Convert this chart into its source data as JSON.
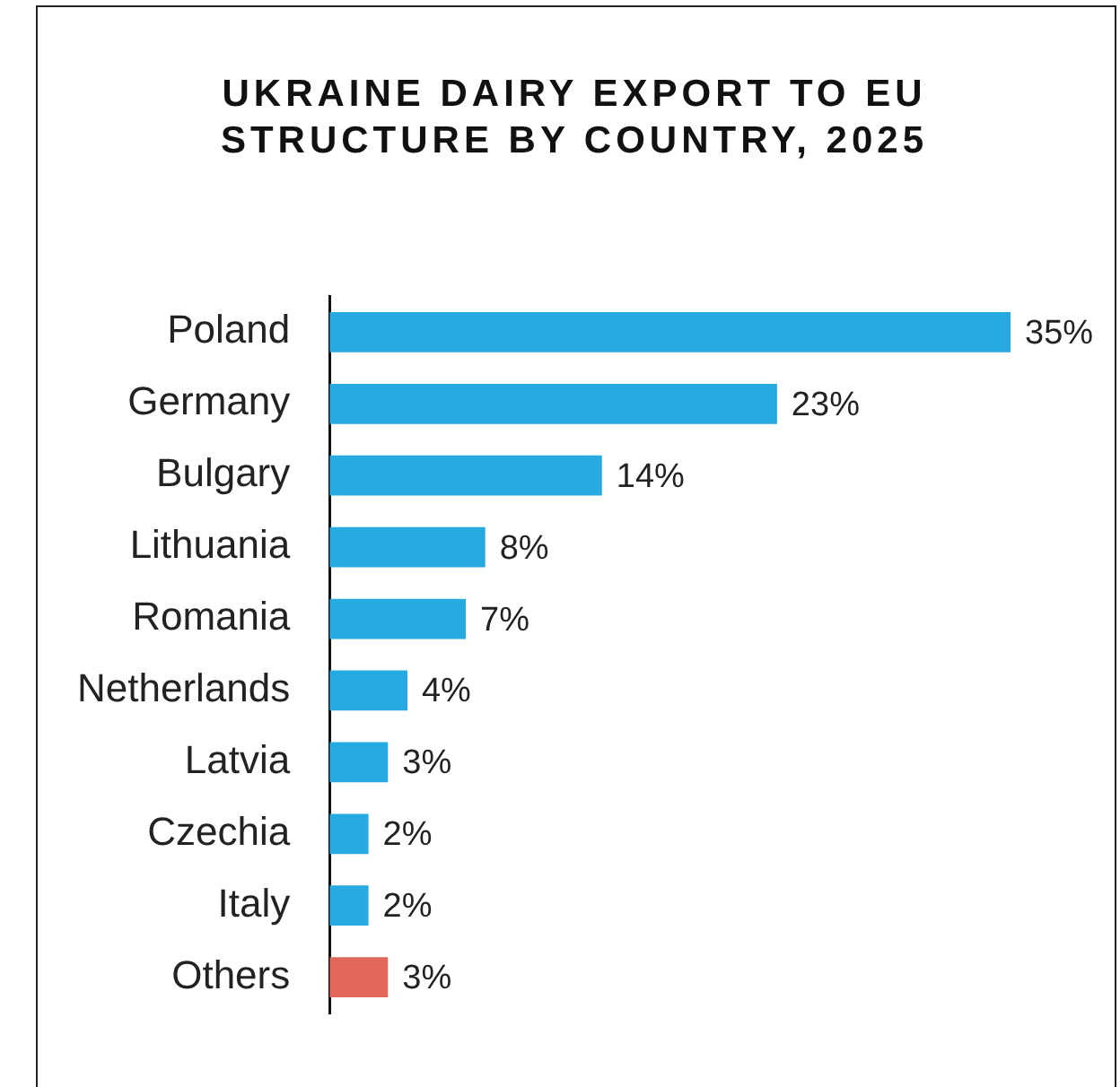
{
  "chart_data": {
    "type": "bar",
    "orientation": "horizontal",
    "title": "UKRAINE DAIRY EXPORT TO EU STRUCTURE BY COUNTRY, 2025",
    "categories": [
      "Poland",
      "Germany",
      "Bulgary",
      "Lithuania",
      "Romania",
      "Netherlands",
      "Latvia",
      "Czechia",
      "Italy",
      "Others"
    ],
    "values": [
      35,
      23,
      14,
      8,
      7,
      4,
      3,
      2,
      2,
      3
    ],
    "colors": [
      "#27a9e1",
      "#27a9e1",
      "#27a9e1",
      "#27a9e1",
      "#27a9e1",
      "#27a9e1",
      "#27a9e1",
      "#27a9e1",
      "#27a9e1",
      "#e0675a"
    ],
    "value_labels": [
      "35%",
      "23%",
      "14%",
      "8%",
      "7%",
      "4%",
      "3%",
      "2%",
      "2%",
      "3%"
    ],
    "legend": false,
    "tick_labels": "y"
  }
}
